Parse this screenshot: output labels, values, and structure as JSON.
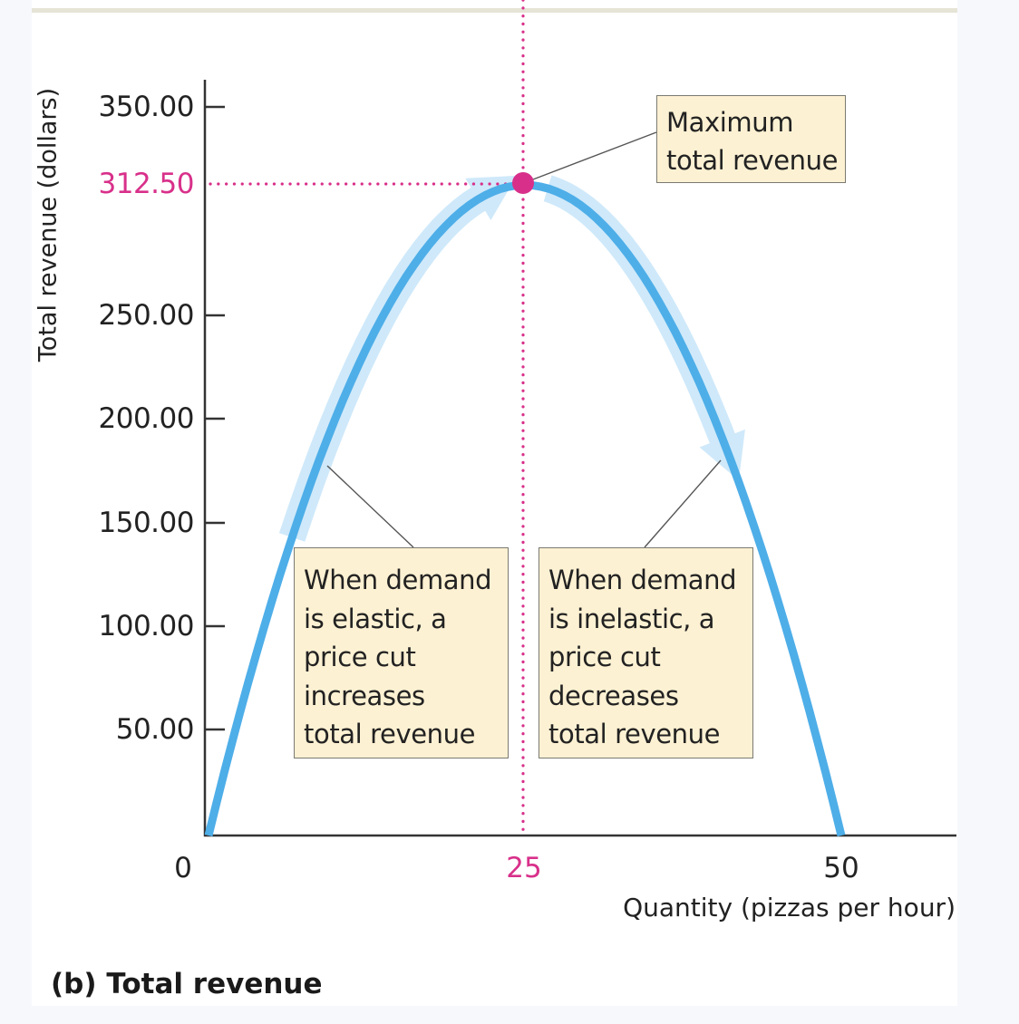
{
  "figure": {
    "caption": "(b) Total revenue"
  },
  "colors": {
    "curve": "#4eaee8",
    "curve_band": "#cfe9fa",
    "accent": "#d8308a",
    "note_fill": "#fdf1d3",
    "axis": "#333333"
  },
  "axes": {
    "ylabel": "Total revenue (dollars)",
    "xlabel": "Quantity (pizzas per hour)",
    "yticks": [
      "350.00",
      "312.50",
      "250.00",
      "200.00",
      "150.00",
      "100.00",
      "50.00"
    ],
    "xticks": [
      "0",
      "25",
      "50"
    ]
  },
  "annotations": {
    "max": {
      "line1": "Maximum",
      "line2": "total revenue"
    },
    "elastic": {
      "lines": [
        "When demand",
        "is elastic, a",
        "price cut",
        "increases",
        "total revenue"
      ]
    },
    "inelastic": {
      "lines": [
        "When demand",
        "is inelastic, a",
        "price cut",
        "decreases",
        "total revenue"
      ]
    }
  },
  "chart_data": {
    "type": "line",
    "title": "(b) Total revenue",
    "xlabel": "Quantity (pizzas per hour)",
    "ylabel": "Total revenue (dollars)",
    "xlim": [
      0,
      59
    ],
    "ylim": [
      0,
      365
    ],
    "x_ticks": [
      0,
      25,
      50
    ],
    "y_ticks": [
      50,
      100,
      150,
      200,
      250,
      312.5,
      350
    ],
    "grid": false,
    "legend": null,
    "series": [
      {
        "name": "Total revenue",
        "x": [
          0,
          5,
          10,
          15,
          20,
          25,
          30,
          35,
          40,
          45,
          50
        ],
        "values": [
          0,
          112.5,
          200,
          262.5,
          300,
          312.5,
          300,
          262.5,
          200,
          112.5,
          0
        ]
      }
    ],
    "highlight_point": {
      "x": 25,
      "y": 312.5,
      "label": "Maximum total revenue"
    },
    "annotations": [
      "Maximum total revenue",
      "When demand is elastic, a price cut increases total revenue",
      "When demand is inelastic, a price cut decreases total revenue"
    ]
  }
}
